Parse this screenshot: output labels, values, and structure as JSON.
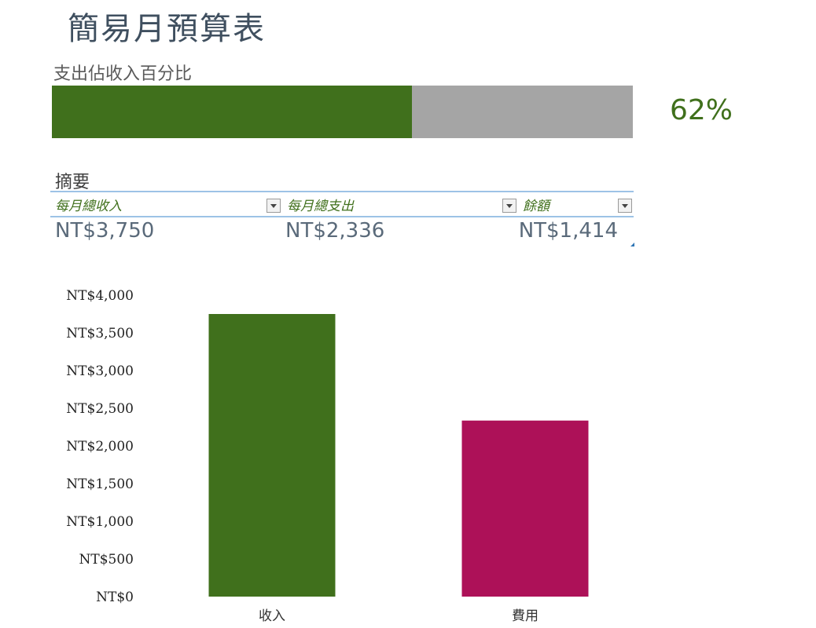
{
  "title": "簡易月預算表",
  "progress": {
    "label": "支出佔收入百分比",
    "value_text": "62%",
    "fraction": 0.62,
    "fill_color": "#40701c",
    "track_color": "#a5a5a5"
  },
  "summary": {
    "label": "摘要",
    "columns": [
      "每月總收入",
      "每月總支出",
      "餘額"
    ],
    "values": [
      "NT$3,750",
      "NT$2,336",
      "NT$1,414"
    ]
  },
  "chart_data": {
    "type": "bar",
    "categories": [
      "收入",
      "費用"
    ],
    "values": [
      3750,
      2336
    ],
    "colors": [
      "#40701c",
      "#ad1158"
    ],
    "ylim": [
      0,
      4000
    ],
    "ytick_values": [
      0,
      500,
      1000,
      1500,
      2000,
      2500,
      3000,
      3500,
      4000
    ],
    "ytick_labels": [
      "NT$0",
      "NT$500",
      "NT$1,000",
      "NT$1,500",
      "NT$2,000",
      "NT$2,500",
      "NT$3,000",
      "NT$3,500",
      "NT$4,000"
    ],
    "title": "",
    "xlabel": "",
    "ylabel": "",
    "grid": false
  }
}
